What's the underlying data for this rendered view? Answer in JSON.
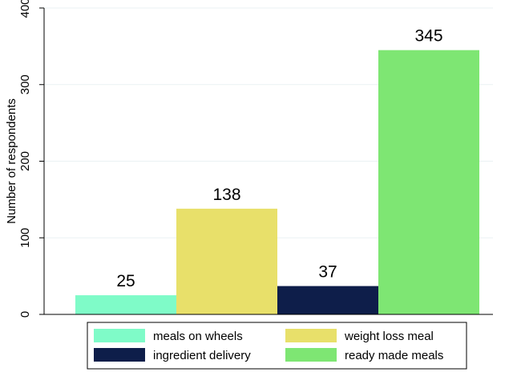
{
  "chart_data": {
    "type": "bar",
    "title": "",
    "xlabel": "",
    "ylabel": "Number of respondents",
    "ylim": [
      0,
      400
    ],
    "yticks": [
      0,
      100,
      200,
      300,
      400
    ],
    "grid": true,
    "legend_position": "bottom",
    "series": [
      {
        "name": "meals on wheels",
        "value": 25,
        "color": "#7ffbc8"
      },
      {
        "name": "weight loss meal",
        "value": 138,
        "color": "#e8e06a"
      },
      {
        "name": "ingredient delivery",
        "value": 37,
        "color": "#0e1e4a"
      },
      {
        "name": "ready made meals",
        "value": 345,
        "color": "#7ee673"
      }
    ]
  }
}
